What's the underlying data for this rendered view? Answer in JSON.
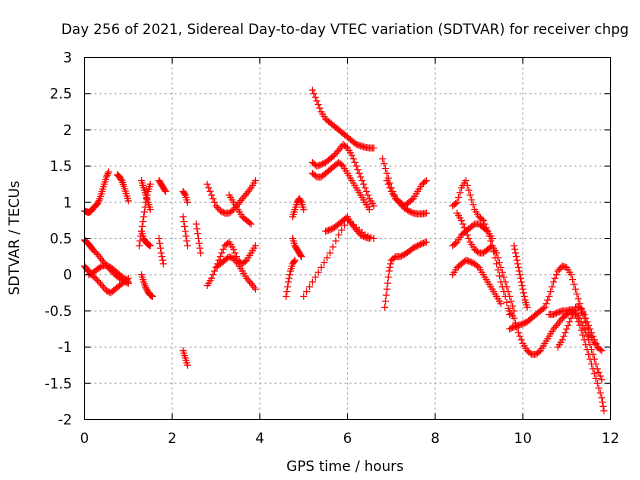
{
  "chart_data": {
    "type": "scatter",
    "title": "Day 256 of 2021, Sidereal Day-to-day VTEC variation (SDTVAR) for receiver chpg",
    "xlabel": "GPS time / hours",
    "ylabel": "SDTVAR / TECUs",
    "xlim": [
      0,
      12
    ],
    "ylim": [
      -2,
      3
    ],
    "xticks": [
      0,
      2,
      4,
      6,
      8,
      10,
      12
    ],
    "xtick_labels": [
      "0",
      "2",
      "4",
      "6",
      "8",
      "10",
      "12"
    ],
    "yticks": [
      -2,
      -1.5,
      -1,
      -0.5,
      0,
      0.5,
      1,
      1.5,
      2,
      2.5,
      3
    ],
    "ytick_labels": [
      "-2",
      "-1.5",
      "-1",
      "-0.5",
      "0",
      "0.5",
      "1",
      "1.5",
      "2",
      "2.5",
      "3"
    ],
    "grid": true,
    "marker": "+",
    "color": "#ff0000",
    "series": [
      {
        "name": "s1",
        "x": [
          0.0,
          0.05,
          0.1,
          0.15,
          0.2,
          0.25,
          0.3,
          0.35,
          0.4,
          0.45,
          0.5,
          0.55
        ],
        "y": [
          0.88,
          0.87,
          0.86,
          0.88,
          0.92,
          0.95,
          0.98,
          1.05,
          1.15,
          1.25,
          1.35,
          1.42
        ]
      },
      {
        "name": "s2",
        "x": [
          0.0,
          0.05,
          0.1,
          0.15,
          0.2,
          0.3,
          0.4,
          0.5,
          0.6,
          0.7,
          0.8,
          0.9,
          1.0
        ],
        "y": [
          0.48,
          0.45,
          0.42,
          0.38,
          0.34,
          0.28,
          0.2,
          0.13,
          0.06,
          0.0,
          -0.05,
          -0.09,
          -0.12
        ]
      },
      {
        "name": "s3",
        "x": [
          0.0,
          0.05,
          0.1,
          0.2,
          0.3,
          0.4,
          0.5,
          0.6,
          0.7,
          0.8,
          0.9,
          1.0
        ],
        "y": [
          0.12,
          0.08,
          0.04,
          -0.02,
          -0.08,
          -0.15,
          -0.22,
          -0.25,
          -0.2,
          -0.15,
          -0.1,
          -0.05
        ]
      },
      {
        "name": "s4",
        "x": [
          0.1,
          0.2,
          0.3,
          0.4,
          0.5,
          0.6,
          0.7,
          0.8,
          0.9,
          1.0
        ],
        "y": [
          0.0,
          0.03,
          0.08,
          0.12,
          0.13,
          0.1,
          0.05,
          0.0,
          -0.05,
          -0.1
        ]
      },
      {
        "name": "s5",
        "x": [
          0.75,
          0.8,
          0.85,
          0.9,
          0.95,
          1.0
        ],
        "y": [
          1.38,
          1.35,
          1.3,
          1.22,
          1.12,
          1.02
        ]
      },
      {
        "name": "s6",
        "x": [
          1.25,
          1.3,
          1.35,
          1.4,
          1.45,
          1.5
        ],
        "y": [
          0.4,
          0.6,
          0.8,
          1.0,
          1.15,
          1.25
        ]
      },
      {
        "name": "s7",
        "x": [
          1.3,
          1.35,
          1.4,
          1.45,
          1.5
        ],
        "y": [
          0.6,
          0.5,
          0.45,
          0.42,
          0.4
        ]
      },
      {
        "name": "s8",
        "x": [
          1.3,
          1.35,
          1.4,
          1.45,
          1.5,
          1.55
        ],
        "y": [
          0.0,
          -0.1,
          -0.18,
          -0.24,
          -0.28,
          -0.3
        ]
      },
      {
        "name": "s9",
        "x": [
          1.3,
          1.35,
          1.4,
          1.45,
          1.5
        ],
        "y": [
          1.3,
          1.2,
          1.1,
          1.0,
          0.9
        ]
      },
      {
        "name": "s10",
        "x": [
          1.7,
          1.75,
          1.8,
          1.85
        ],
        "y": [
          1.3,
          1.25,
          1.2,
          1.15
        ]
      },
      {
        "name": "s11",
        "x": [
          1.7,
          1.75,
          1.8
        ],
        "y": [
          0.5,
          0.3,
          0.15
        ]
      },
      {
        "name": "s12",
        "x": [
          2.25,
          2.3,
          2.35
        ],
        "y": [
          1.15,
          1.1,
          1.0
        ]
      },
      {
        "name": "s13",
        "x": [
          2.25,
          2.3,
          2.35
        ],
        "y": [
          0.8,
          0.6,
          0.4
        ]
      },
      {
        "name": "s14",
        "x": [
          2.25,
          2.3,
          2.35
        ],
        "y": [
          -1.05,
          -1.15,
          -1.25
        ]
      },
      {
        "name": "s15",
        "x": [
          2.55,
          2.6,
          2.65
        ],
        "y": [
          0.7,
          0.5,
          0.3
        ]
      },
      {
        "name": "s16",
        "x": [
          2.8,
          2.9,
          3.0,
          3.1,
          3.2,
          3.3,
          3.4,
          3.5,
          3.6,
          3.7,
          3.8,
          3.9
        ],
        "y": [
          1.25,
          1.1,
          0.95,
          0.88,
          0.85,
          0.85,
          0.9,
          0.97,
          1.05,
          1.12,
          1.2,
          1.3
        ]
      },
      {
        "name": "s17",
        "x": [
          2.8,
          2.9,
          3.0,
          3.1,
          3.2,
          3.3,
          3.4,
          3.5,
          3.6,
          3.7,
          3.8,
          3.9
        ],
        "y": [
          -0.15,
          -0.05,
          0.1,
          0.25,
          0.4,
          0.45,
          0.35,
          0.2,
          0.15,
          0.2,
          0.3,
          0.4
        ]
      },
      {
        "name": "s18",
        "x": [
          3.0,
          3.1,
          3.2,
          3.3,
          3.4,
          3.5,
          3.6,
          3.7,
          3.8,
          3.9
        ],
        "y": [
          0.1,
          0.15,
          0.2,
          0.25,
          0.22,
          0.15,
          0.05,
          -0.05,
          -0.12,
          -0.2
        ]
      },
      {
        "name": "s19",
        "x": [
          3.3,
          3.4,
          3.5,
          3.6,
          3.7,
          3.8
        ],
        "y": [
          1.1,
          1.0,
          0.9,
          0.8,
          0.75,
          0.7
        ]
      },
      {
        "name": "s20",
        "x": [
          4.75,
          4.8,
          4.85,
          4.9,
          4.95,
          5.0
        ],
        "y": [
          0.8,
          0.9,
          1.0,
          1.05,
          1.0,
          0.9
        ]
      },
      {
        "name": "s21",
        "x": [
          4.75,
          4.8,
          4.85,
          4.9,
          4.95
        ],
        "y": [
          0.5,
          0.4,
          0.35,
          0.3,
          0.25
        ]
      },
      {
        "name": "s22",
        "x": [
          4.6,
          4.65,
          4.7,
          4.75,
          4.8
        ],
        "y": [
          -0.3,
          -0.1,
          0.05,
          0.15,
          0.2
        ]
      },
      {
        "name": "s23",
        "x": [
          5.2,
          5.3,
          5.4,
          5.5,
          5.6,
          5.7,
          5.8,
          5.9,
          6.0,
          6.1,
          6.2,
          6.3,
          6.4,
          6.5,
          6.6
        ],
        "y": [
          2.55,
          2.4,
          2.25,
          2.15,
          2.1,
          2.05,
          2.0,
          1.95,
          1.9,
          1.85,
          1.8,
          1.78,
          1.76,
          1.75,
          1.75
        ]
      },
      {
        "name": "s24",
        "x": [
          5.2,
          5.3,
          5.4,
          5.5,
          5.6,
          5.7,
          5.8,
          5.9,
          6.0,
          6.1,
          6.2,
          6.3,
          6.4,
          6.5,
          6.6
        ],
        "y": [
          1.55,
          1.5,
          1.52,
          1.55,
          1.6,
          1.65,
          1.72,
          1.8,
          1.75,
          1.65,
          1.5,
          1.35,
          1.2,
          1.05,
          0.95
        ]
      },
      {
        "name": "s25",
        "x": [
          5.2,
          5.3,
          5.4,
          5.5,
          5.6,
          5.7,
          5.8,
          5.9,
          6.0,
          6.1,
          6.2,
          6.3,
          6.4,
          6.5
        ],
        "y": [
          1.4,
          1.35,
          1.35,
          1.4,
          1.45,
          1.5,
          1.55,
          1.5,
          1.4,
          1.3,
          1.2,
          1.1,
          1.0,
          0.9
        ]
      },
      {
        "name": "s26",
        "x": [
          5.0,
          5.2,
          5.4,
          5.6,
          5.8,
          6.0,
          6.2,
          6.4,
          6.6
        ],
        "y": [
          -0.3,
          -0.1,
          0.1,
          0.3,
          0.55,
          0.75,
          0.65,
          0.55,
          0.5
        ]
      },
      {
        "name": "s27",
        "x": [
          5.5,
          5.6,
          5.7,
          5.8,
          5.9,
          6.0,
          6.1,
          6.2,
          6.3,
          6.4,
          6.5
        ],
        "y": [
          0.6,
          0.62,
          0.65,
          0.7,
          0.75,
          0.8,
          0.7,
          0.62,
          0.55,
          0.52,
          0.5
        ]
      },
      {
        "name": "s28",
        "x": [
          6.8,
          6.9,
          7.0,
          7.1,
          7.2,
          7.3,
          7.4,
          7.5,
          7.6,
          7.7,
          7.8
        ],
        "y": [
          1.6,
          1.4,
          1.2,
          1.05,
          1.0,
          0.95,
          1.0,
          1.05,
          1.15,
          1.25,
          1.3
        ]
      },
      {
        "name": "s29",
        "x": [
          6.9,
          7.0,
          7.1,
          7.2,
          7.3,
          7.4,
          7.5,
          7.6,
          7.7,
          7.8
        ],
        "y": [
          1.3,
          1.15,
          1.05,
          0.98,
          0.92,
          0.88,
          0.85,
          0.84,
          0.84,
          0.85
        ]
      },
      {
        "name": "s30",
        "x": [
          6.85,
          6.9,
          6.95,
          7.0,
          7.1,
          7.2,
          7.3,
          7.4,
          7.5,
          7.6,
          7.7,
          7.8
        ],
        "y": [
          -0.45,
          -0.2,
          0.05,
          0.2,
          0.25,
          0.25,
          0.28,
          0.32,
          0.37,
          0.4,
          0.43,
          0.45
        ]
      },
      {
        "name": "s31",
        "x": [
          8.4,
          8.5,
          8.6,
          8.7,
          8.8,
          8.9,
          9.0,
          9.1,
          9.2,
          9.3,
          9.4,
          9.5,
          9.6,
          9.7
        ],
        "y": [
          0.95,
          1.0,
          1.2,
          1.3,
          1.1,
          0.9,
          0.8,
          0.75,
          0.6,
          0.4,
          0.15,
          -0.1,
          -0.3,
          -0.55
        ]
      },
      {
        "name": "s32",
        "x": [
          8.4,
          8.5,
          8.6,
          8.7,
          8.8,
          8.9,
          9.0,
          9.1,
          9.2,
          9.3
        ],
        "y": [
          0.4,
          0.45,
          0.55,
          0.6,
          0.65,
          0.7,
          0.7,
          0.65,
          0.6,
          0.5
        ]
      },
      {
        "name": "s33",
        "x": [
          8.4,
          8.5,
          8.6,
          8.7,
          8.8,
          8.9,
          9.0,
          9.1,
          9.2,
          9.3,
          9.4,
          9.5
        ],
        "y": [
          0.0,
          0.1,
          0.15,
          0.2,
          0.18,
          0.15,
          0.1,
          0.0,
          -0.1,
          -0.2,
          -0.3,
          -0.4
        ]
      },
      {
        "name": "s34",
        "x": [
          8.5,
          8.6,
          8.7,
          8.8,
          8.9,
          9.0,
          9.1,
          9.2,
          9.3,
          9.4,
          9.5,
          9.6,
          9.7,
          9.8
        ],
        "y": [
          0.85,
          0.75,
          0.6,
          0.45,
          0.35,
          0.3,
          0.3,
          0.35,
          0.4,
          0.3,
          0.1,
          -0.1,
          -0.3,
          -0.5
        ]
      },
      {
        "name": "s35",
        "x": [
          9.8,
          9.85,
          9.9,
          9.95,
          10.0,
          10.05,
          10.1
        ],
        "y": [
          0.4,
          0.25,
          0.1,
          -0.05,
          -0.2,
          -0.35,
          -0.45
        ]
      },
      {
        "name": "s36",
        "x": [
          9.7,
          9.8,
          9.9,
          10.0,
          10.1,
          10.2,
          10.3,
          10.4,
          10.5,
          10.6,
          10.7,
          10.8,
          10.9,
          11.0,
          11.1,
          11.2,
          11.3,
          11.4,
          11.5,
          11.6,
          11.7,
          11.8
        ],
        "y": [
          -0.75,
          -0.72,
          -0.7,
          -0.68,
          -0.65,
          -0.6,
          -0.55,
          -0.5,
          -0.45,
          -0.3,
          -0.1,
          0.05,
          0.12,
          0.1,
          0.0,
          -0.2,
          -0.4,
          -0.6,
          -0.8,
          -0.9,
          -1.0,
          -1.05
        ]
      },
      {
        "name": "s37",
        "x": [
          9.7,
          9.8,
          9.9,
          10.0,
          10.1,
          10.2,
          10.3,
          10.4,
          10.5,
          10.6,
          10.7,
          10.8,
          10.9,
          11.0,
          11.1,
          11.2,
          11.3,
          11.4,
          11.5,
          11.6,
          11.7,
          11.8,
          11.85
        ],
        "y": [
          -0.5,
          -0.6,
          -0.8,
          -0.95,
          -1.05,
          -1.1,
          -1.1,
          -1.05,
          -0.95,
          -0.85,
          -0.75,
          -0.68,
          -0.6,
          -0.55,
          -0.5,
          -0.55,
          -0.7,
          -0.9,
          -1.1,
          -1.3,
          -1.5,
          -1.7,
          -1.88
        ]
      },
      {
        "name": "s38",
        "x": [
          10.6,
          10.7,
          10.8,
          10.9,
          11.0,
          11.1,
          11.2,
          11.3,
          11.4,
          11.5,
          11.6,
          11.7,
          11.8
        ],
        "y": [
          -0.55,
          -0.55,
          -0.52,
          -0.5,
          -0.5,
          -0.48,
          -0.5,
          -0.6,
          -0.75,
          -0.9,
          -1.1,
          -1.3,
          -1.45
        ]
      },
      {
        "name": "s39",
        "x": [
          10.8,
          10.9,
          11.0,
          11.1,
          11.2,
          11.3,
          11.4,
          11.5,
          11.6,
          11.7
        ],
        "y": [
          -1.0,
          -0.9,
          -0.75,
          -0.6,
          -0.45,
          -0.45,
          -0.55,
          -0.7,
          -0.85,
          -1.0
        ]
      }
    ]
  }
}
